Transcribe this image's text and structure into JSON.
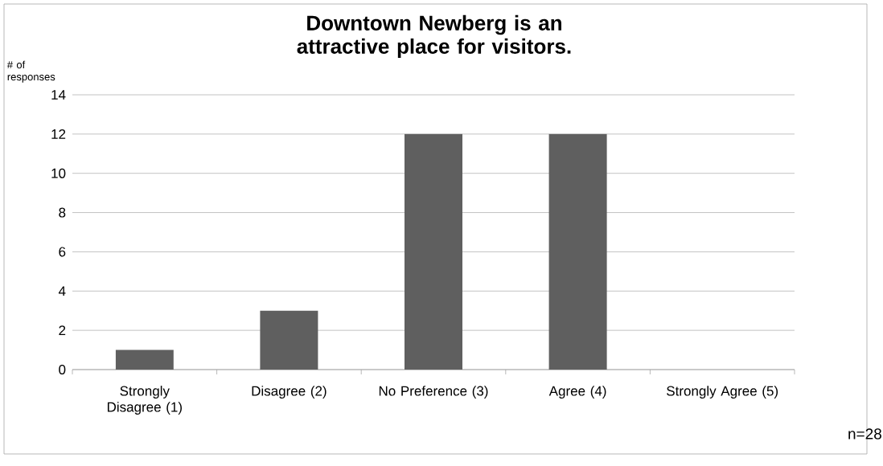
{
  "chart_data": {
    "type": "bar",
    "title": "Downtown Newberg is an attractive place for visitors.",
    "ylabel": "# of responses",
    "categories": [
      "Strongly Disagree (1)",
      "Disagree (2)",
      "No Preference (3)",
      "Agree (4)",
      "Strongly Agree (5)"
    ],
    "values": [
      1,
      3,
      12,
      12,
      0
    ],
    "color": "#5f5f5f",
    "ylim": [
      0,
      14
    ],
    "yticks": [
      0,
      2,
      4,
      6,
      8,
      10,
      12,
      14
    ],
    "grid": "y",
    "annotations": [
      "n=28"
    ]
  }
}
